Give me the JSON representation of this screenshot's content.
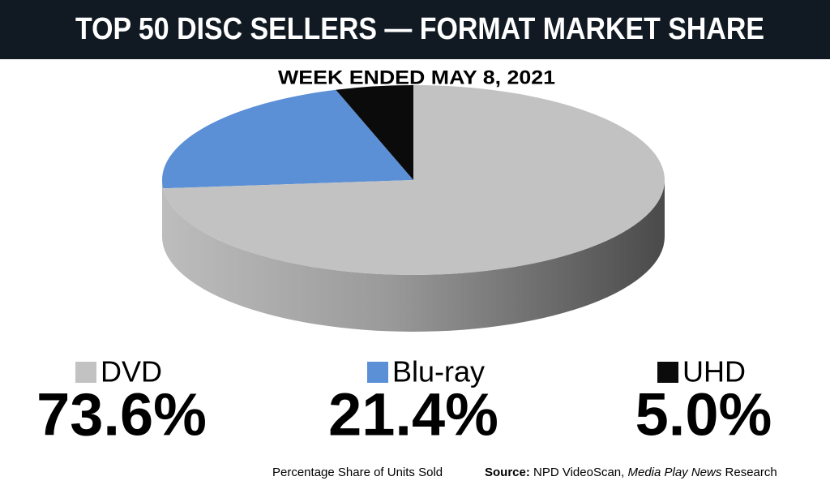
{
  "chart_data": {
    "type": "pie",
    "title": "TOP 50 DISC SELLERS — FORMAT MARKET SHARE",
    "subtitle": "WEEK ENDED MAY 8, 2021",
    "categories": [
      "DVD",
      "Blu-ray",
      "UHD"
    ],
    "values": [
      73.6,
      21.4,
      5.0
    ],
    "value_labels": [
      "73.6%",
      "21.4%",
      "5.0%"
    ],
    "colors": [
      "#c2c2c2",
      "#5b8fd6",
      "#0b0b0b"
    ],
    "note": "Percentage Share of Units Sold",
    "source": [
      "Source:",
      " NPD VideoScan, ",
      "Media Play News",
      " Research"
    ]
  }
}
